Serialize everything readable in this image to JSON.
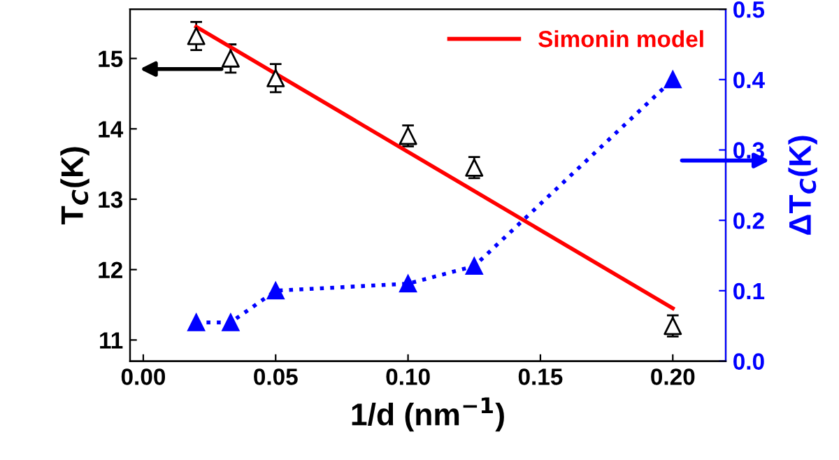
{
  "chart_data": {
    "type": "scatter",
    "xlabel": "1/d (nm$^{−1}$)",
    "ylabel": "T$_{C}$(K)",
    "y2label": "ΔT$_{C}$(K)",
    "xlim": [
      -0.005,
      0.22
    ],
    "xticks": [
      {
        "value": 0,
        "label": "0.00"
      },
      {
        "value": 0.05,
        "label": "0.05"
      },
      {
        "value": 0.1,
        "label": "0.10"
      },
      {
        "value": 0.15,
        "label": "0.15"
      },
      {
        "value": 0.2,
        "label": "0.20"
      }
    ],
    "ylim": [
      10.7,
      15.7
    ],
    "yticks": [
      11,
      12,
      13,
      14,
      15
    ],
    "y2lim": [
      0,
      0.5
    ],
    "y2ticks": [
      {
        "value": 0,
        "label": "0.0"
      },
      0.1,
      0.2,
      0.3,
      0.4,
      0.5
    ],
    "grid": false,
    "legend": "top right",
    "series": [
      {
        "color": "#000000",
        "marker": "triangle",
        "x": [
          0.02,
          0.033,
          0.05,
          0.1,
          0.125,
          0.2
        ],
        "values": [
          15.32,
          15.0,
          14.72,
          13.9,
          13.45,
          11.2
        ],
        "errors": [
          0.2,
          0.2,
          0.2,
          0.15,
          0.15,
          0.15
        ]
      },
      {
        "type": "line",
        "name": "Simonin model",
        "color": "#ff0000",
        "line_style": "solid",
        "marker": "none",
        "x": [
          0.02,
          0.2
        ],
        "values": [
          15.45,
          11.45
        ]
      },
      {
        "type": "line",
        "axis": "y2",
        "color": "#0000ff",
        "line_style": "dotted",
        "marker": "triangle",
        "x": [
          0.02,
          0.033,
          0.05,
          0.1,
          0.125,
          0.2
        ],
        "values": [
          0.055,
          0.055,
          0.1,
          0.11,
          0.135,
          0.4
        ]
      }
    ]
  }
}
